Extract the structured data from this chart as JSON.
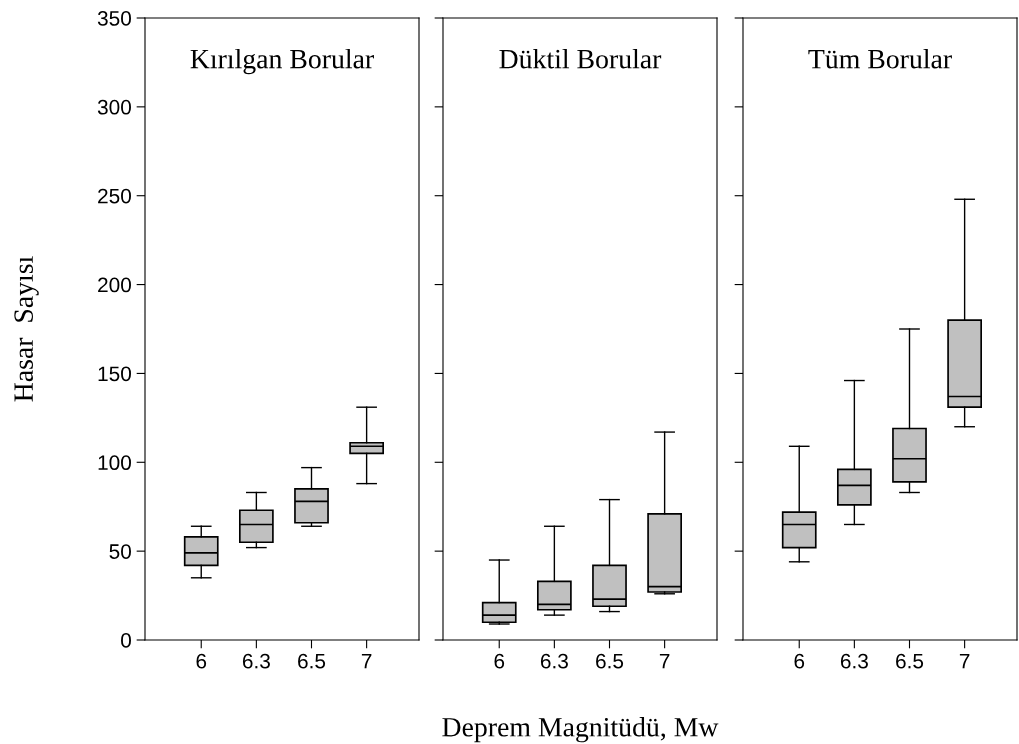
{
  "chart_data": [
    {
      "type": "box",
      "title": "Kırılgan Borular",
      "ylabel": "Hasar  Sayısı",
      "categories": [
        "6",
        "6.3",
        "6.5",
        "7"
      ],
      "ylim": [
        0,
        350
      ],
      "yticks": [
        0,
        50,
        100,
        150,
        200,
        250,
        300,
        350
      ],
      "color": "#c0c0c0",
      "grid": false,
      "legend": false,
      "boxes": [
        {
          "low": 35,
          "q1": 42,
          "median": 49,
          "q3": 58,
          "high": 64
        },
        {
          "low": 52,
          "q1": 55,
          "median": 65,
          "q3": 73,
          "high": 83
        },
        {
          "low": 64,
          "q1": 66,
          "median": 78,
          "q3": 85,
          "high": 97
        },
        {
          "low": 88,
          "q1": 105,
          "median": 109,
          "q3": 111,
          "high": 131
        }
      ]
    },
    {
      "type": "box",
      "title": "Düktil Borular",
      "xlabel": "Deprem Magnitüdü, Mw",
      "categories": [
        "6",
        "6.3",
        "6.5",
        "7"
      ],
      "ylim": [
        0,
        350
      ],
      "yticks": [
        {
          "value": 0,
          "label": null
        },
        {
          "value": 50,
          "label": null
        },
        {
          "value": 100,
          "label": null
        },
        {
          "value": 150,
          "label": null
        },
        {
          "value": 200,
          "label": null
        },
        {
          "value": 250,
          "label": null
        },
        {
          "value": 300,
          "label": null
        },
        {
          "value": 350,
          "label": null
        }
      ],
      "tick_labels": "x",
      "color": "#c0c0c0",
      "grid": false,
      "legend": false,
      "boxes": [
        {
          "low": 9,
          "q1": 10,
          "median": 14,
          "q3": 21,
          "high": 45
        },
        {
          "low": 14,
          "q1": 17,
          "median": 20,
          "q3": 33,
          "high": 64
        },
        {
          "low": 16,
          "q1": 19,
          "median": 23,
          "q3": 42,
          "high": 79
        },
        {
          "low": 26,
          "q1": 27,
          "median": 30,
          "q3": 71,
          "high": 117
        }
      ]
    },
    {
      "type": "box",
      "title": "Tüm Borular",
      "categories": [
        "6",
        "6.3",
        "6.5",
        "7"
      ],
      "ylim": [
        0,
        350
      ],
      "yticks": [
        {
          "value": 0,
          "label": null
        },
        {
          "value": 50,
          "label": null
        },
        {
          "value": 100,
          "label": null
        },
        {
          "value": 150,
          "label": null
        },
        {
          "value": 200,
          "label": null
        },
        {
          "value": 250,
          "label": null
        },
        {
          "value": 300,
          "label": null
        },
        {
          "value": 350,
          "label": null
        }
      ],
      "tick_labels": "x",
      "color": "#c0c0c0",
      "grid": false,
      "legend": false,
      "boxes": [
        {
          "low": 44,
          "q1": 52,
          "median": 65,
          "q3": 72,
          "high": 109
        },
        {
          "low": 65,
          "q1": 76,
          "median": 87,
          "q3": 96,
          "high": 146
        },
        {
          "low": 83,
          "q1": 89,
          "median": 102,
          "q3": 119,
          "high": 175
        },
        {
          "low": 120,
          "q1": 131,
          "median": 137,
          "q3": 180,
          "high": 248
        }
      ]
    }
  ]
}
